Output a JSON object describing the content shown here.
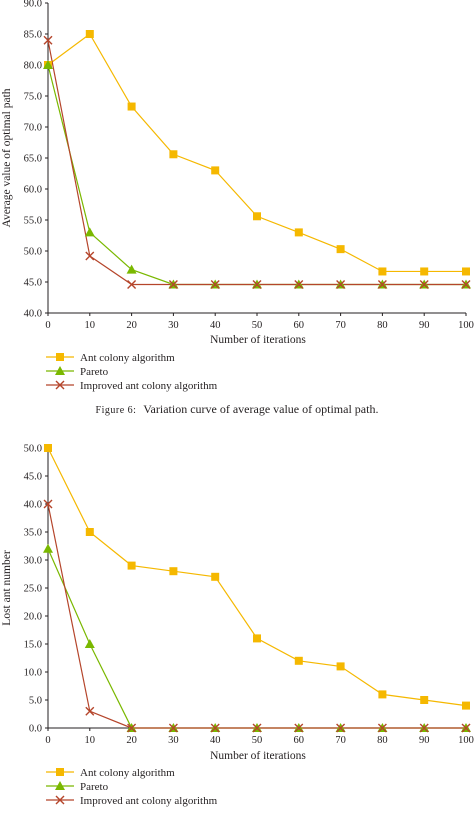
{
  "colors": {
    "ant": "#f5b800",
    "pareto": "#7ab800",
    "improved": "#b5452b",
    "axis": "#231f20"
  },
  "chart_data": [
    {
      "type": "line",
      "title": "",
      "xlabel": "Number of iterations",
      "ylabel": "Average value of optimal path",
      "xlim": [
        0,
        100
      ],
      "ylim": [
        40,
        90
      ],
      "x_ticks": [
        "0",
        "10",
        "20",
        "30",
        "40",
        "50",
        "60",
        "70",
        "80",
        "90",
        "100"
      ],
      "y_ticks": [
        "40.0",
        "45.0",
        "50.0",
        "55.0",
        "60.0",
        "65.0",
        "70.0",
        "75.0",
        "80.0",
        "85.0",
        "90.0"
      ],
      "grid": false,
      "legend_position": "bottom-left",
      "x": [
        0,
        10,
        20,
        30,
        40,
        50,
        60,
        70,
        80,
        90,
        100
      ],
      "series": [
        {
          "name": "Ant colony algorithm",
          "marker": "square",
          "color": "#f5b800",
          "values": [
            80,
            85,
            73.3,
            65.6,
            63,
            55.6,
            53,
            50.3,
            46.7,
            46.7,
            46.7
          ]
        },
        {
          "name": "Pareto",
          "marker": "triangle",
          "color": "#7ab800",
          "values": [
            80,
            53,
            47,
            44.6,
            44.6,
            44.6,
            44.6,
            44.6,
            44.6,
            44.6,
            44.6
          ]
        },
        {
          "name": "Improved ant colony algorithm",
          "marker": "x",
          "color": "#b5452b",
          "values": [
            84,
            49.2,
            44.6,
            44.6,
            44.6,
            44.6,
            44.6,
            44.6,
            44.6,
            44.6,
            44.6
          ]
        }
      ]
    },
    {
      "type": "line",
      "title": "",
      "xlabel": "Number of iterations",
      "ylabel": "Lost ant number",
      "xlim": [
        0,
        100
      ],
      "ylim": [
        0,
        50
      ],
      "x_ticks": [
        "0",
        "10",
        "20",
        "30",
        "40",
        "50",
        "60",
        "70",
        "80",
        "90",
        "100"
      ],
      "y_ticks": [
        "0.0",
        "5.0",
        "10.0",
        "15.0",
        "20.0",
        "25.0",
        "30.0",
        "35.0",
        "40.0",
        "45.0",
        "50.0"
      ],
      "grid": false,
      "legend_position": "bottom-left",
      "x": [
        0,
        10,
        20,
        30,
        40,
        50,
        60,
        70,
        80,
        90,
        100
      ],
      "series": [
        {
          "name": "Ant colony algorithm",
          "marker": "square",
          "color": "#f5b800",
          "values": [
            50,
            35,
            29,
            28,
            27,
            16,
            12,
            11,
            6,
            5,
            4
          ]
        },
        {
          "name": "Pareto",
          "marker": "triangle",
          "color": "#7ab800",
          "values": [
            32,
            15,
            0,
            0,
            0,
            0,
            0,
            0,
            0,
            0,
            0
          ]
        },
        {
          "name": "Improved ant colony algorithm",
          "marker": "x",
          "color": "#b5452b",
          "values": [
            40,
            3,
            0,
            0,
            0,
            0,
            0,
            0,
            0,
            0,
            0
          ]
        }
      ]
    }
  ],
  "captions": {
    "fig6_prefix": "Figure 6:",
    "fig6_text": "Variation curve of average value of optimal path."
  }
}
